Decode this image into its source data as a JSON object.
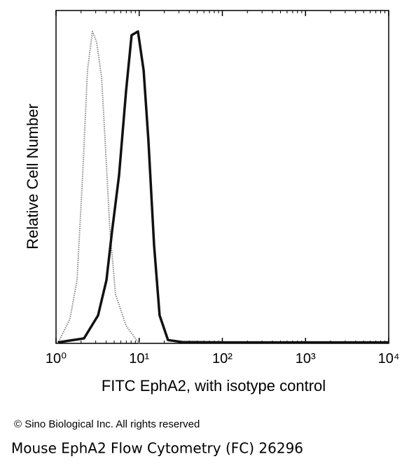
{
  "chart_data": {
    "type": "line",
    "ylabel": "Relative Cell Number",
    "xlabel": "FITC EphA2, with isotype control",
    "xscale": "log",
    "xlim": [
      1,
      10000
    ],
    "ylim": [
      0,
      100
    ],
    "xticks": [
      {
        "value": 1,
        "label": "10⁰"
      },
      {
        "value": 10,
        "label": "10¹"
      },
      {
        "value": 100,
        "label": "10²"
      },
      {
        "value": 1000,
        "label": "10³"
      },
      {
        "value": 10000,
        "label": "10⁴"
      }
    ],
    "xminorticks": [
      2,
      3,
      4,
      5,
      6,
      7,
      8,
      9,
      20,
      30,
      40,
      50,
      60,
      70,
      80,
      90,
      200,
      300,
      400,
      500,
      600,
      700,
      800,
      900,
      2000,
      3000,
      4000,
      5000,
      6000,
      7000,
      8000,
      9000
    ],
    "series": [
      {
        "color": "#8a8a8a",
        "line_style": "dotted",
        "x": [
          1.05,
          1.47,
          1.79,
          2.09,
          2.39,
          2.74,
          3.08,
          3.53,
          3.89,
          4.45,
          5.2,
          6.95,
          9.3,
          10.2
        ],
        "values": [
          0,
          7.4,
          19,
          50.5,
          82,
          93.7,
          90.5,
          80,
          61,
          33.7,
          14.7,
          5.3,
          1,
          0
        ]
      },
      {
        "color": "#111111",
        "line_style": "solid",
        "x": [
          1.05,
          2.17,
          3.2,
          4.04,
          4.72,
          5.73,
          6.95,
          8.1,
          9.66,
          11.3,
          12.9,
          15.1,
          17.6,
          22.2,
          32.8,
          100,
          1000,
          10000
        ],
        "values": [
          0.3,
          1.5,
          8.4,
          19,
          33.7,
          50.5,
          75.8,
          92.6,
          93.7,
          82,
          61,
          29.5,
          8.4,
          1,
          0.4,
          0.3,
          0.3,
          0.3
        ]
      }
    ]
  },
  "copyright": "© Sino Biological Inc. All rights reserved",
  "caption": "Mouse EphA2 Flow Cytometry (FC) 26296"
}
